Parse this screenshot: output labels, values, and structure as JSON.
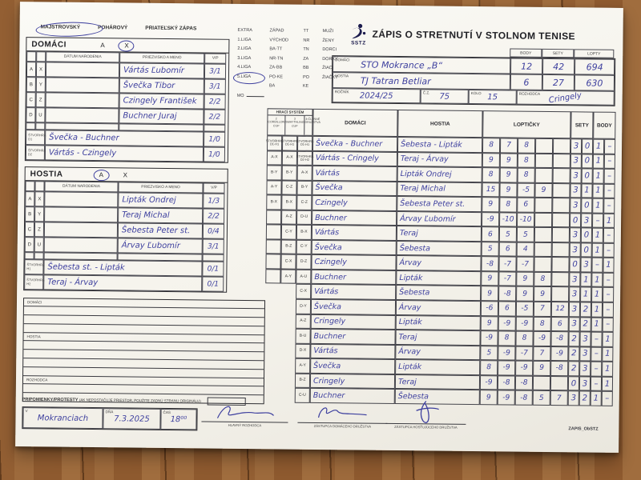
{
  "colors": {
    "ink": "#3d3f9e",
    "paper": "#f8f7f3",
    "wood": "#8f5c31"
  },
  "match_type": {
    "options": [
      "MAJSTROVSKÝ",
      "POHÁROVÝ",
      "PRIATEĽSKÝ ZÁPAS"
    ],
    "selected": "MAJSTROVSKÝ"
  },
  "team_domaci": {
    "title": "DOMÁCI",
    "letter_a": "A",
    "letter_x": "X",
    "circled": "X",
    "headers": {
      "datum": "DÁTUM NARODENIA",
      "meno": "PRIEZVISKO A MENO",
      "vp": "V/P"
    },
    "players": [
      {
        "r1": "A",
        "r2": "X",
        "name": "Vártás Ľubomír",
        "vp": "3/1"
      },
      {
        "r1": "B",
        "r2": "Y",
        "name": "Švečka Tibor",
        "vp": "3/1"
      },
      {
        "r1": "C",
        "r2": "Z",
        "name": "Czingely František",
        "vp": "2/2"
      },
      {
        "r1": "D",
        "r2": "U",
        "name": "Buchner Juraj",
        "vp": "2/2"
      }
    ],
    "doubles": [
      {
        "label": "ŠTVORHRA D1",
        "name": "Švečka - Buchner",
        "vp": "1/0"
      },
      {
        "label": "ŠTVORHRA D2",
        "name": "Vártás - Czingely",
        "vp": "1/0"
      }
    ]
  },
  "team_hostia": {
    "title": "HOSTIA",
    "letter_a": "A",
    "letter_x": "X",
    "circled": "A",
    "headers": {
      "datum": "DÁTUM NARODENIA",
      "meno": "PRIEZVISKO A MENO",
      "vp": "V/P"
    },
    "players": [
      {
        "r1": "A",
        "r2": "X",
        "name": "Lipták Ondrej",
        "vp": "1/3"
      },
      {
        "r1": "B",
        "r2": "Y",
        "name": "Teraj Michal",
        "vp": "2/2"
      },
      {
        "r1": "C",
        "r2": "Z",
        "name": "Šebesta Peter st.",
        "vp": "0/4"
      },
      {
        "r1": "D",
        "r2": "U",
        "name": "Árvay Ľubomír",
        "vp": "3/1"
      }
    ],
    "doubles": [
      {
        "label": "ŠTVORHRA H1",
        "name": "Šebesta st. - Lipták",
        "vp": "0/1"
      },
      {
        "label": "ŠTVORHRA H2",
        "name": "Teraj - Árvay",
        "vp": "0/1"
      }
    ]
  },
  "league_box": {
    "rows": [
      [
        "EXTRA",
        "ZÁPAD",
        "TT",
        "MUŽI"
      ],
      [
        "1.LIGA",
        "VÝCHOD",
        "NR",
        "ŽENY"
      ],
      [
        "2.LIGA",
        "BA-TT",
        "TN",
        "DORCI"
      ],
      [
        "3.LIGA",
        "NR-TN",
        "ZA",
        "DORKY"
      ],
      [
        "4.LIGA",
        "ZA-BB",
        "BB",
        "ŽIACI"
      ],
      [
        "5.LIGA",
        "PO-KE",
        "PO",
        "ŽIAČKY"
      ],
      [
        "",
        "BA",
        "KE",
        ""
      ]
    ],
    "circled": "5.LIGA",
    "mo_label": "MO"
  },
  "header": {
    "title": "ZÁPIS O STRETNUTÍ V STOLNOM TENISE",
    "logo_text": "SSTZ"
  },
  "score_box": {
    "col_body": "BODY",
    "col_sety": "SETY",
    "col_lopty": "LOPTY",
    "domaci_label": "DOMÁCI",
    "domaci_team": "STO Mokrance „B“",
    "domaci_body": "12",
    "domaci_sety": "42",
    "domaci_lopty": "694",
    "hostia_label": "HOSTIA",
    "hostia_team": "TJ Tatran Betliar",
    "hostia_body": "6",
    "hostia_sety": "27",
    "hostia_lopty": "630",
    "rocnik_label": "ROČNÍK",
    "rocnik": "2024/25",
    "cz_label": "Č.Z.",
    "cz": "75",
    "kolo_label": "KOLO",
    "kolo": "15",
    "rozhodca_label": "ROZHODCA",
    "rozhodca": "Cringely"
  },
  "grid": {
    "system_label": "HRACÍ SYSTÉM",
    "system_heads": [
      "2 CORBILLON CUP",
      "3 SWAYTHLING CUP",
      "4-ČLENNÉ DRUŽSTVÁ"
    ],
    "columns": {
      "domaci": "DOMÁCI",
      "hostia": "HOSTIA",
      "lopticky": "LOPTIČKY",
      "sety": "SETY",
      "body": "BODY"
    },
    "system_codes_2": [
      "ŠTVORHRA D1-H1",
      "A-X",
      "B-Y",
      "A-Y",
      "B-X",
      "",
      "",
      "",
      "",
      ""
    ],
    "system_codes_3": [
      "ŠTVORHRA D1-H1",
      "A-X",
      "B-Y",
      "C-Z",
      "B-X",
      "A-Z",
      "C-Y",
      "B-Z",
      "C-X",
      "A-Y"
    ],
    "system_codes_4": [
      "ŠTVORHRA D1-H1",
      "ŠTVORHRA D2-H2",
      "A-X",
      "B-Y",
      "C-Z",
      "D-U",
      "B-X",
      "C-Y",
      "D-Z",
      "A-U",
      "C-X",
      "D-Y",
      "A-Z",
      "B-U",
      "D-X",
      "A-Y",
      "B-Z",
      "C-U"
    ],
    "rows": [
      {
        "domaci": "Švečka - Buchner",
        "hostia": "Šebesta - Lipták",
        "balls": [
          "8",
          "7",
          "8",
          "",
          ""
        ],
        "sety": [
          "3",
          "0"
        ],
        "body": [
          "1",
          "–"
        ]
      },
      {
        "domaci": "Vártás - Cringely",
        "hostia": "Teraj - Árvay",
        "balls": [
          "9",
          "9",
          "8",
          "",
          ""
        ],
        "sety": [
          "3",
          "0"
        ],
        "body": [
          "1",
          "–"
        ]
      },
      {
        "domaci": "Vártás",
        "hostia": "Lipták Ondrej",
        "balls": [
          "8",
          "9",
          "8",
          "",
          ""
        ],
        "sety": [
          "3",
          "0"
        ],
        "body": [
          "1",
          "–"
        ]
      },
      {
        "domaci": "Švečka",
        "hostia": "Teraj Michal",
        "balls": [
          "15",
          "9",
          "-5",
          "9",
          ""
        ],
        "sety": [
          "3",
          "1"
        ],
        "body": [
          "1",
          "–"
        ]
      },
      {
        "domaci": "Czingely",
        "hostia": "Šebesta Peter st.",
        "balls": [
          "9",
          "8",
          "6",
          "",
          ""
        ],
        "sety": [
          "3",
          "0"
        ],
        "body": [
          "1",
          "–"
        ]
      },
      {
        "domaci": "Buchner",
        "hostia": "Árvay Ľubomír",
        "balls": [
          "-9",
          "-10",
          "-10",
          "",
          ""
        ],
        "sety": [
          "0",
          "3"
        ],
        "body": [
          "–",
          "1"
        ]
      },
      {
        "domaci": "Vártás",
        "hostia": "Teraj",
        "balls": [
          "6",
          "5",
          "5",
          "",
          ""
        ],
        "sety": [
          "3",
          "0"
        ],
        "body": [
          "1",
          "–"
        ]
      },
      {
        "domaci": "Švečka",
        "hostia": "Šebesta",
        "balls": [
          "5",
          "6",
          "4",
          "",
          ""
        ],
        "sety": [
          "3",
          "0"
        ],
        "body": [
          "1",
          "–"
        ]
      },
      {
        "domaci": "Czingely",
        "hostia": "Árvay",
        "balls": [
          "-8",
          "-7",
          "-7",
          "",
          ""
        ],
        "sety": [
          "0",
          "3"
        ],
        "body": [
          "–",
          "1"
        ]
      },
      {
        "domaci": "Buchner",
        "hostia": "Lipták",
        "balls": [
          "9",
          "-7",
          "9",
          "8",
          ""
        ],
        "sety": [
          "3",
          "1"
        ],
        "body": [
          "1",
          "–"
        ]
      },
      {
        "domaci": "Vártás",
        "hostia": "Šebesta",
        "balls": [
          "9",
          "-8",
          "9",
          "9",
          ""
        ],
        "sety": [
          "3",
          "1"
        ],
        "body": [
          "1",
          "–"
        ]
      },
      {
        "domaci": "Švečka",
        "hostia": "Árvay",
        "balls": [
          "-6",
          "6",
          "-5",
          "7",
          "12"
        ],
        "sety": [
          "3",
          "2"
        ],
        "body": [
          "1",
          "–"
        ]
      },
      {
        "domaci": "Cringely",
        "hostia": "Lipták",
        "balls": [
          "9",
          "-9",
          "-9",
          "8",
          "6"
        ],
        "sety": [
          "3",
          "2"
        ],
        "body": [
          "1",
          "–"
        ]
      },
      {
        "domaci": "Buchner",
        "hostia": "Teraj",
        "balls": [
          "-9",
          "8",
          "8",
          "-9",
          "-8"
        ],
        "sety": [
          "2",
          "3"
        ],
        "body": [
          "–",
          "1"
        ]
      },
      {
        "domaci": "Vártás",
        "hostia": "Árvay",
        "balls": [
          "5",
          "-9",
          "-7",
          "7",
          "-9"
        ],
        "sety": [
          "2",
          "3"
        ],
        "body": [
          "–",
          "1"
        ]
      },
      {
        "domaci": "Švečka",
        "hostia": "Lipták",
        "balls": [
          "8",
          "-9",
          "-9",
          "9",
          "-8"
        ],
        "sety": [
          "2",
          "3"
        ],
        "body": [
          "–",
          "1"
        ]
      },
      {
        "domaci": "Cringely",
        "hostia": "Teraj",
        "balls": [
          "-9",
          "-8",
          "-8",
          "",
          ""
        ],
        "sety": [
          "0",
          "3"
        ],
        "body": [
          "–",
          "1"
        ]
      },
      {
        "domaci": "Buchner",
        "hostia": "Šebesta",
        "balls": [
          "9",
          "-9",
          "-8",
          "5",
          "7"
        ],
        "sety": [
          "3",
          "2"
        ],
        "body": [
          "1",
          "–"
        ]
      }
    ]
  },
  "notes": {
    "domaci_label": "DOMÁCI",
    "hostia_label": "HOSTIA",
    "rozhodca_label": "ROZHODCA",
    "pripomienky_label": "PRIPOMIENKY/PROTESTY",
    "pripomienky_note": "(AK NEPOSTAČUJE PRIESTOR, POUŽITE ZADNÚ STRANU ORIGINÁLU)"
  },
  "footer": {
    "v_label": "V",
    "place": "Mokranciach",
    "dna_label": "DŇA",
    "date": "7.3.2025",
    "cas_label": "ČAS",
    "time": "18⁰⁰",
    "sig_referee": "HLAVNÝ ROZHODCA",
    "sig_home": "ZÁSTUPCA DOMÁCEHO DRUŽSTVA",
    "sig_away": "ZÁSTUPCA HOSŤUJÚCEHO DRUŽSTVA",
    "form_code": "ZAPIS_ObSTZ"
  }
}
